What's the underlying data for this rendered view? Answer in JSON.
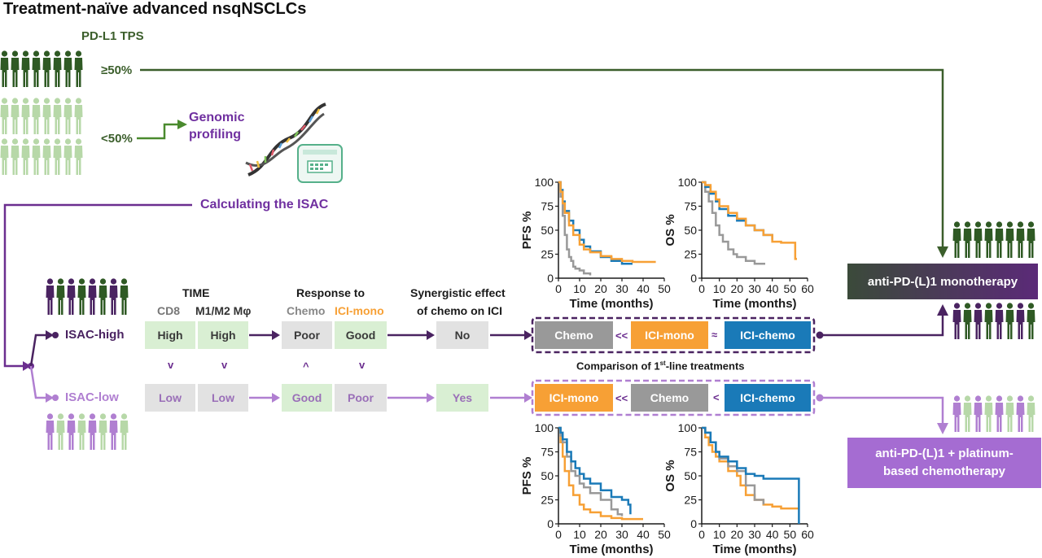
{
  "title": "Treatment-naïve advanced nsqNSCLCs",
  "pdl1": {
    "label": "PD-L1 TPS",
    "high": "≥50%",
    "low": "<50%"
  },
  "genomic": "Genomic\nprofiling",
  "isac_calc": "Calculating the ISAC",
  "headers": {
    "time": "TIME",
    "cd8": "CD8",
    "m1m2": "M1/M2 Mφ",
    "response": "Response to",
    "chemo": "Chemo",
    "icimono": "ICI-mono",
    "syn1": "Synergistic effect",
    "syn2": "of chemo on ICI"
  },
  "high_row": {
    "label": "ISAC-high",
    "cd8": "High",
    "m1m2": "High",
    "chemo": "Poor",
    "icimono": "Good",
    "syn": "No"
  },
  "low_row": {
    "label": "ISAC-low",
    "cd8": "Low",
    "m1m2": "Low",
    "chemo": "Good",
    "icimono": "Poor",
    "syn": "Yes"
  },
  "compare_symbols": {
    "cd8": "v",
    "m1m2": "v",
    "chemo": "^",
    "icimono": "v"
  },
  "comparison_high": {
    "a": "Chemo",
    "op1": "<<",
    "b": "ICI-mono",
    "op2": "≈",
    "c": "ICI-chemo"
  },
  "comparison_low": {
    "a": "ICI-mono",
    "op1": "<<",
    "b": "Chemo",
    "op2": "<",
    "c": "ICI-chemo"
  },
  "comparison_title_pre": "Comparison of 1",
  "comparison_title_sup": "st",
  "comparison_title_post": "-line treatments",
  "outcomes": {
    "high": "anti-PD-(L)1 monotherapy",
    "low1": "anti-PD-(L)1 + platinum-",
    "low2": "based chemotherapy"
  },
  "colors": {
    "dark_green": "#3b5e2b",
    "light_green": "#b3d4a7",
    "dark_purple": "#4a2361",
    "light_purple": "#b07fd1",
    "orange": "#f7a035",
    "grey": "#999999",
    "blue": "#1a7ab8",
    "purple_text": "#7030a0"
  },
  "chart_data": [
    {
      "type": "line",
      "ylabel": "PFS %",
      "xlabel": "Time (months)",
      "xlim": [
        0,
        50
      ],
      "ylim": [
        0,
        100
      ],
      "xticks": [
        0,
        10,
        20,
        30,
        40,
        50
      ],
      "yticks": [
        0,
        25,
        50,
        75,
        100
      ],
      "series": [
        {
          "color": "#999999",
          "x": [
            0,
            1,
            2,
            3,
            4,
            5,
            6,
            7,
            8,
            10,
            12,
            15
          ],
          "y": [
            100,
            85,
            65,
            45,
            30,
            22,
            18,
            12,
            10,
            8,
            5,
            3
          ]
        },
        {
          "color": "#1a7ab8",
          "x": [
            0,
            1,
            2,
            3,
            5,
            7,
            10,
            12,
            15,
            20,
            25,
            30,
            35
          ],
          "y": [
            100,
            92,
            80,
            70,
            60,
            50,
            40,
            33,
            28,
            22,
            18,
            15,
            15
          ]
        },
        {
          "color": "#f7a035",
          "x": [
            0,
            1,
            2,
            3,
            5,
            7,
            10,
            12,
            15,
            20,
            25,
            30,
            35,
            40,
            46
          ],
          "y": [
            100,
            90,
            78,
            68,
            55,
            45,
            35,
            30,
            27,
            23,
            20,
            18,
            17,
            17,
            17
          ]
        }
      ]
    },
    {
      "type": "line",
      "ylabel": "OS %",
      "xlabel": "Time (months)",
      "xlim": [
        0,
        60
      ],
      "ylim": [
        0,
        100
      ],
      "xticks": [
        0,
        10,
        20,
        30,
        40,
        50,
        60
      ],
      "yticks": [
        0,
        25,
        50,
        75,
        100
      ],
      "series": [
        {
          "color": "#999999",
          "x": [
            0,
            2,
            4,
            6,
            8,
            10,
            12,
            15,
            18,
            20,
            25,
            30,
            36
          ],
          "y": [
            100,
            90,
            80,
            68,
            55,
            45,
            38,
            30,
            25,
            22,
            18,
            15,
            15
          ]
        },
        {
          "color": "#1a7ab8",
          "x": [
            0,
            2,
            5,
            8,
            10,
            15,
            20,
            25,
            30,
            35,
            40
          ],
          "y": [
            100,
            95,
            88,
            80,
            72,
            65,
            60,
            55,
            50,
            45,
            40
          ]
        },
        {
          "color": "#f7a035",
          "x": [
            0,
            2,
            5,
            8,
            10,
            15,
            20,
            25,
            30,
            35,
            40,
            45,
            50,
            52,
            53,
            54
          ],
          "y": [
            100,
            97,
            90,
            82,
            75,
            68,
            62,
            55,
            50,
            45,
            38,
            37,
            37,
            37,
            20,
            20
          ]
        }
      ]
    },
    {
      "type": "line",
      "ylabel": "PFS %",
      "xlabel": "Time (months)",
      "xlim": [
        0,
        50
      ],
      "ylim": [
        0,
        100
      ],
      "xticks": [
        0,
        10,
        20,
        30,
        40,
        50
      ],
      "yticks": [
        0,
        25,
        50,
        75,
        100
      ],
      "series": [
        {
          "color": "#f7a035",
          "x": [
            0,
            1,
            2,
            3,
            5,
            7,
            10,
            12,
            15,
            20,
            25,
            30,
            35,
            40
          ],
          "y": [
            100,
            85,
            70,
            55,
            40,
            30,
            20,
            15,
            12,
            8,
            6,
            5,
            5,
            5
          ]
        },
        {
          "color": "#999999",
          "x": [
            0,
            1,
            2,
            4,
            6,
            8,
            10,
            12,
            15,
            20,
            25,
            28,
            30
          ],
          "y": [
            100,
            92,
            85,
            70,
            55,
            50,
            42,
            38,
            32,
            25,
            15,
            10,
            8
          ]
        },
        {
          "color": "#1a7ab8",
          "x": [
            0,
            1,
            2,
            4,
            6,
            8,
            10,
            12,
            15,
            20,
            25,
            30,
            33,
            34
          ],
          "y": [
            100,
            95,
            88,
            75,
            65,
            58,
            52,
            47,
            42,
            35,
            28,
            25,
            20,
            10
          ]
        }
      ]
    },
    {
      "type": "line",
      "ylabel": "OS %",
      "xlabel": "Time (months)",
      "xlim": [
        0,
        60
      ],
      "ylim": [
        0,
        100
      ],
      "xticks": [
        0,
        10,
        20,
        30,
        40,
        50,
        60
      ],
      "yticks": [
        0,
        25,
        50,
        75,
        100
      ],
      "series": [
        {
          "color": "#f7a035",
          "x": [
            0,
            2,
            4,
            6,
            8,
            10,
            15,
            20,
            22,
            25,
            30,
            35,
            40,
            45,
            50,
            55
          ],
          "y": [
            100,
            90,
            82,
            75,
            70,
            65,
            55,
            50,
            40,
            30,
            25,
            20,
            18,
            16,
            16,
            16
          ]
        },
        {
          "color": "#999999",
          "x": [
            0,
            2,
            5,
            8,
            10,
            15,
            20,
            25,
            30,
            35
          ],
          "y": [
            100,
            95,
            85,
            75,
            68,
            60,
            55,
            40,
            25,
            20
          ]
        },
        {
          "color": "#1a7ab8",
          "x": [
            0,
            2,
            5,
            8,
            10,
            15,
            20,
            25,
            30,
            35,
            40,
            45,
            50,
            55,
            55.1
          ],
          "y": [
            100,
            95,
            85,
            75,
            70,
            65,
            58,
            52,
            50,
            47,
            47,
            47,
            47,
            47,
            0
          ]
        }
      ]
    }
  ]
}
